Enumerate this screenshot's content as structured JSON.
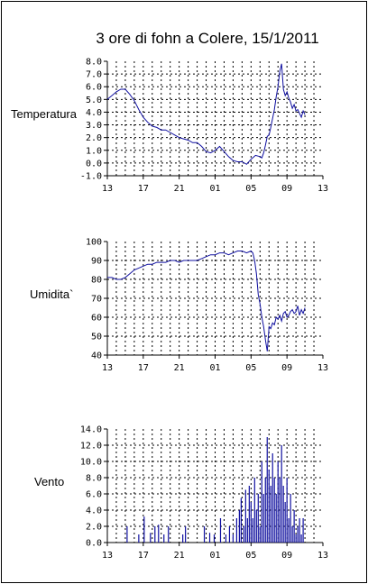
{
  "title": "3 ore di fohn a Colere, 15/1/2011",
  "chart_data": [
    {
      "type": "line",
      "ylabel": "Temperatura",
      "ylim": [
        -1.0,
        8.0
      ],
      "yticks": [
        "8.0",
        "7.0",
        "6.0",
        "5.0",
        "4.0",
        "3.0",
        "2.0",
        "1.0",
        "0.0",
        "-1.0"
      ],
      "xlim": [
        13,
        37
      ],
      "xticks": [
        "13",
        "17",
        "21",
        "01",
        "05",
        "09",
        "13"
      ],
      "x": [
        13,
        13.5,
        14,
        14.5,
        15,
        15.5,
        16,
        16.5,
        17,
        17.5,
        18,
        18.5,
        19,
        19.5,
        20,
        20.5,
        21,
        21.5,
        22,
        22.5,
        23,
        23.5,
        24,
        24.5,
        25,
        25.5,
        26,
        26.5,
        27,
        27.5,
        28,
        28.5,
        29,
        29.5,
        30,
        30.2,
        30.4,
        30.6,
        30.8,
        31,
        31.2,
        31.4,
        31.6,
        31.8,
        32,
        32.2,
        32.4,
        32.6,
        32.8,
        33,
        33.2,
        33.4,
        33.6,
        33.8,
        34,
        34.2,
        34.4,
        34.6,
        34.8,
        35
      ],
      "values": [
        5.0,
        5.3,
        5.6,
        5.8,
        5.8,
        5.4,
        4.9,
        4.2,
        3.6,
        3.2,
        2.9,
        2.8,
        2.6,
        2.6,
        2.4,
        2.2,
        2.0,
        1.9,
        1.8,
        1.6,
        1.6,
        1.3,
        0.9,
        0.8,
        1.0,
        1.3,
        0.9,
        0.5,
        0.2,
        0.1,
        0.1,
        -0.1,
        0.3,
        0.6,
        0.5,
        0.4,
        0.8,
        1.4,
        2.1,
        2.2,
        2.8,
        3.5,
        4.2,
        5.2,
        6.0,
        7.2,
        7.8,
        5.8,
        5.3,
        5.6,
        5.1,
        4.8,
        4.3,
        4.6,
        4.1,
        4.2,
        3.9,
        3.6,
        4.1,
        3.8
      ]
    },
    {
      "type": "line",
      "ylabel": "Umidita`",
      "ylim": [
        40,
        100
      ],
      "yticks": [
        "100",
        "90",
        "80",
        "70",
        "60",
        "50",
        "40"
      ],
      "xlim": [
        13,
        37
      ],
      "xticks": [
        "13",
        "17",
        "21",
        "01",
        "05",
        "09",
        "13"
      ],
      "x": [
        13,
        13.5,
        14,
        14.5,
        15,
        15.5,
        16,
        16.5,
        17,
        17.5,
        18,
        18.5,
        19,
        19.5,
        20,
        20.5,
        21,
        21.5,
        22,
        22.5,
        23,
        23.5,
        24,
        24.5,
        25,
        25.5,
        26,
        26.5,
        27,
        27.5,
        28,
        28.5,
        29,
        29.2,
        29.4,
        29.6,
        29.8,
        30,
        30.2,
        30.4,
        30.6,
        30.8,
        31,
        31.2,
        31.4,
        31.6,
        31.8,
        32,
        32.2,
        32.4,
        32.6,
        32.8,
        33,
        33.2,
        33.4,
        33.6,
        33.8,
        34,
        34.2,
        34.4,
        34.6,
        34.8,
        35
      ],
      "values": [
        81,
        81,
        80,
        80,
        81,
        83,
        85,
        86,
        87,
        88,
        88,
        89,
        89,
        89,
        90,
        90,
        89,
        90,
        90,
        90,
        90,
        91,
        92,
        93,
        93,
        94,
        94,
        93,
        94,
        95,
        95,
        94,
        95,
        94,
        90,
        83,
        72,
        67,
        60,
        55,
        48,
        42,
        55,
        54,
        57,
        56,
        60,
        59,
        61,
        58,
        62,
        63,
        60,
        61,
        63,
        64,
        62,
        63,
        66,
        61,
        64,
        62,
        65
      ]
    },
    {
      "type": "bar",
      "ylabel": "Vento",
      "ylim": [
        0.0,
        14.0
      ],
      "yticks": [
        "14.0",
        "12.0",
        "10.0",
        "8.0",
        "6.0",
        "4.0",
        "2.0",
        "0.0"
      ],
      "xlim": [
        13,
        37
      ],
      "xticks": [
        "13",
        "17",
        "21",
        "01",
        "05",
        "09",
        "13"
      ],
      "x": [
        15.2,
        16.5,
        17.1,
        17.8,
        18.3,
        18.7,
        19.3,
        19.8,
        21.4,
        21.7,
        23.8,
        24.4,
        24.9,
        25.6,
        26.2,
        26.6,
        27.0,
        27.4,
        27.7,
        27.9,
        28.2,
        28.4,
        28.6,
        28.8,
        29.0,
        29.2,
        29.4,
        29.6,
        29.8,
        30.0,
        30.2,
        30.4,
        30.6,
        30.8,
        31.0,
        31.2,
        31.4,
        31.6,
        31.8,
        32.0,
        32.2,
        32.4,
        32.6,
        32.8,
        33.0,
        33.2,
        33.4,
        33.6,
        33.8,
        34.0,
        34.2,
        34.4,
        34.6,
        34.8
      ],
      "values": [
        2.0,
        1.0,
        3.2,
        1.2,
        2.0,
        2.2,
        1.0,
        2.0,
        1.0,
        2.0,
        2.0,
        1.2,
        1.0,
        3.0,
        1.0,
        2.0,
        1.0,
        3.0,
        4.0,
        5.5,
        2.0,
        6.5,
        3.0,
        7.0,
        5.0,
        3.0,
        8.0,
        4.0,
        6.0,
        2.0,
        10.0,
        6.0,
        8.0,
        13.0,
        9.0,
        7.0,
        11.0,
        8.0,
        6.0,
        10.0,
        8.0,
        12.0,
        7.0,
        5.0,
        8.0,
        3.0,
        6.0,
        2.0,
        4.0,
        1.0,
        2.0,
        3.0,
        1.0,
        3.0
      ]
    }
  ]
}
